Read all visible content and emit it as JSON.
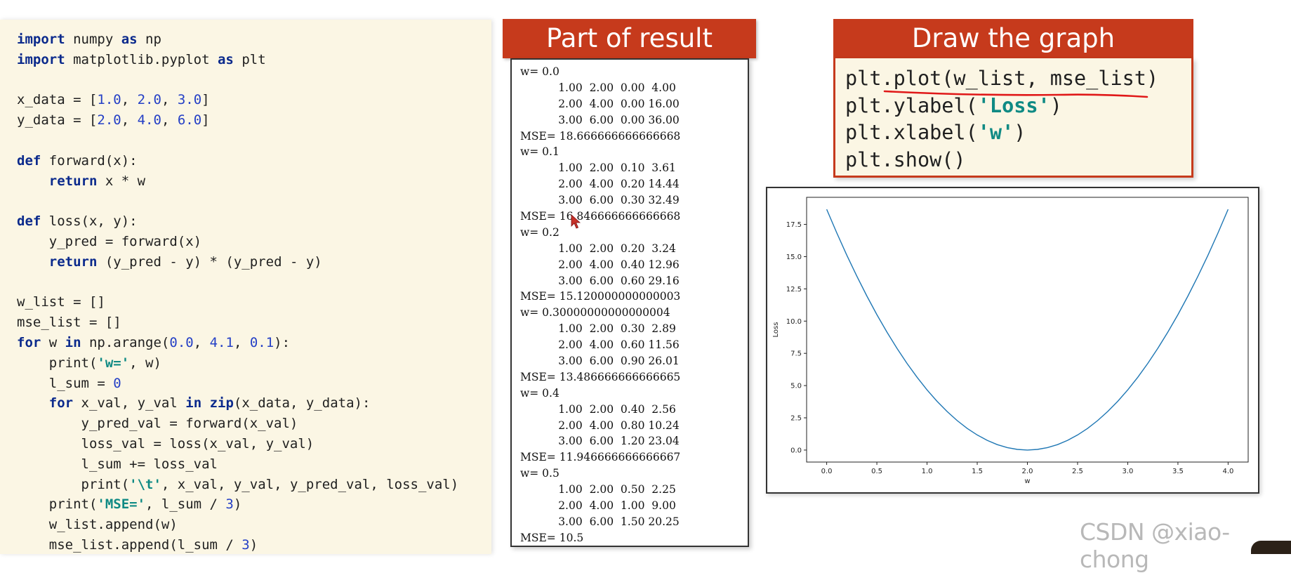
{
  "code": {
    "lines": [
      {
        "kind": "plain",
        "parts": [
          {
            "t": "import",
            "k": "kw"
          },
          {
            "t": " numpy ",
            "k": ""
          },
          {
            "t": "as",
            "k": "kw"
          },
          {
            "t": " np",
            "k": ""
          }
        ]
      },
      {
        "kind": "plain",
        "parts": [
          {
            "t": "import",
            "k": "kw"
          },
          {
            "t": " matplotlib.pyplot ",
            "k": ""
          },
          {
            "t": "as",
            "k": "kw"
          },
          {
            "t": " plt",
            "k": ""
          }
        ]
      },
      {
        "kind": "blank",
        "parts": []
      },
      {
        "kind": "plain",
        "parts": [
          {
            "t": "x_data = [",
            "k": ""
          },
          {
            "t": "1.0",
            "k": "num"
          },
          {
            "t": ", ",
            "k": ""
          },
          {
            "t": "2.0",
            "k": "num"
          },
          {
            "t": ", ",
            "k": ""
          },
          {
            "t": "3.0",
            "k": "num"
          },
          {
            "t": "]",
            "k": ""
          }
        ]
      },
      {
        "kind": "plain",
        "parts": [
          {
            "t": "y_data = [",
            "k": ""
          },
          {
            "t": "2.0",
            "k": "num"
          },
          {
            "t": ", ",
            "k": ""
          },
          {
            "t": "4.0",
            "k": "num"
          },
          {
            "t": ", ",
            "k": ""
          },
          {
            "t": "6.0",
            "k": "num"
          },
          {
            "t": "]",
            "k": ""
          }
        ]
      },
      {
        "kind": "blank",
        "parts": []
      },
      {
        "kind": "plain",
        "parts": [
          {
            "t": "def",
            "k": "kw"
          },
          {
            "t": " forward(x):",
            "k": ""
          }
        ]
      },
      {
        "kind": "plain",
        "parts": [
          {
            "t": "    ",
            "k": ""
          },
          {
            "t": "return",
            "k": "kw"
          },
          {
            "t": " x * w",
            "k": ""
          }
        ]
      },
      {
        "kind": "blank",
        "parts": []
      },
      {
        "kind": "plain",
        "parts": [
          {
            "t": "def",
            "k": "kw"
          },
          {
            "t": " loss(x, y):",
            "k": ""
          }
        ]
      },
      {
        "kind": "plain",
        "parts": [
          {
            "t": "    y_pred = forward(x)",
            "k": ""
          }
        ]
      },
      {
        "kind": "plain",
        "parts": [
          {
            "t": "    ",
            "k": ""
          },
          {
            "t": "return",
            "k": "kw"
          },
          {
            "t": " (y_pred - y) * (y_pred - y)",
            "k": ""
          }
        ]
      },
      {
        "kind": "blank",
        "parts": []
      },
      {
        "kind": "plain",
        "parts": [
          {
            "t": "w_list = []",
            "k": ""
          }
        ]
      },
      {
        "kind": "plain",
        "parts": [
          {
            "t": "mse_list = []",
            "k": ""
          }
        ]
      },
      {
        "kind": "plain",
        "parts": [
          {
            "t": "for",
            "k": "kw"
          },
          {
            "t": " w ",
            "k": ""
          },
          {
            "t": "in",
            "k": "kw"
          },
          {
            "t": " np.arange(",
            "k": ""
          },
          {
            "t": "0.0",
            "k": "num"
          },
          {
            "t": ", ",
            "k": ""
          },
          {
            "t": "4.1",
            "k": "num"
          },
          {
            "t": ", ",
            "k": ""
          },
          {
            "t": "0.1",
            "k": "num"
          },
          {
            "t": "):",
            "k": ""
          }
        ]
      },
      {
        "kind": "plain",
        "parts": [
          {
            "t": "    print(",
            "k": ""
          },
          {
            "t": "'w='",
            "k": "str"
          },
          {
            "t": ", w)",
            "k": ""
          }
        ]
      },
      {
        "kind": "plain",
        "parts": [
          {
            "t": "    l_sum = ",
            "k": ""
          },
          {
            "t": "0",
            "k": "num"
          }
        ]
      },
      {
        "kind": "plain",
        "parts": [
          {
            "t": "    ",
            "k": ""
          },
          {
            "t": "for",
            "k": "kw"
          },
          {
            "t": " x_val, y_val ",
            "k": ""
          },
          {
            "t": "in",
            "k": "kw"
          },
          {
            "t": " ",
            "k": ""
          },
          {
            "t": "zip",
            "k": "kw"
          },
          {
            "t": "(x_data, y_data):",
            "k": ""
          }
        ]
      },
      {
        "kind": "plain",
        "parts": [
          {
            "t": "        y_pred_val = forward(x_val)",
            "k": ""
          }
        ]
      },
      {
        "kind": "plain",
        "parts": [
          {
            "t": "        loss_val = loss(x_val, y_val)",
            "k": ""
          }
        ]
      },
      {
        "kind": "plain",
        "parts": [
          {
            "t": "        l_sum += loss_val",
            "k": ""
          }
        ]
      },
      {
        "kind": "plain",
        "parts": [
          {
            "t": "        print(",
            "k": ""
          },
          {
            "t": "'\\t'",
            "k": "str"
          },
          {
            "t": ", x_val, y_val, y_pred_val, loss_val)",
            "k": ""
          }
        ]
      },
      {
        "kind": "plain",
        "parts": [
          {
            "t": "    print(",
            "k": ""
          },
          {
            "t": "'MSE='",
            "k": "str"
          },
          {
            "t": ", l_sum / ",
            "k": ""
          },
          {
            "t": "3",
            "k": "num"
          },
          {
            "t": ")",
            "k": ""
          }
        ]
      },
      {
        "kind": "plain",
        "parts": [
          {
            "t": "    w_list.append(w)",
            "k": ""
          }
        ]
      },
      {
        "kind": "plain",
        "parts": [
          {
            "t": "    mse_list.append(l_sum / ",
            "k": ""
          },
          {
            "t": "3",
            "k": "num"
          },
          {
            "t": ")",
            "k": ""
          }
        ]
      }
    ]
  },
  "result": {
    "title": "Part of result",
    "lines": [
      "w= 0.0",
      "           1.00  2.00  0.00  4.00",
      "           2.00  4.00  0.00 16.00",
      "           3.00  6.00  0.00 36.00",
      "MSE= 18.666666666666668",
      "w= 0.1",
      "           1.00  2.00  0.10  3.61",
      "           2.00  4.00  0.20 14.44",
      "           3.00  6.00  0.30 32.49",
      "MSE= 16.846666666666668",
      "w= 0.2",
      "           1.00  2.00  0.20  3.24",
      "           2.00  4.00  0.40 12.96",
      "           3.00  6.00  0.60 29.16",
      "MSE= 15.120000000000003",
      "w= 0.30000000000000004",
      "           1.00  2.00  0.30  2.89",
      "           2.00  4.00  0.60 11.56",
      "           3.00  6.00  0.90 26.01",
      "MSE= 13.486666666666665",
      "w= 0.4",
      "           1.00  2.00  0.40  2.56",
      "           2.00  4.00  0.80 10.24",
      "           3.00  6.00  1.20 23.04",
      "MSE= 11.946666666666667",
      "w= 0.5",
      "           1.00  2.00  0.50  2.25",
      "           2.00  4.00  1.00  9.00",
      "           3.00  6.00  1.50 20.25",
      "MSE= 10.5"
    ]
  },
  "graph": {
    "title": "Draw the graph",
    "code_lines": [
      [
        {
          "t": "plt.plot(w_list, mse_list)",
          "k": ""
        }
      ],
      [
        {
          "t": "plt.ylabel(",
          "k": ""
        },
        {
          "t": "'Loss'",
          "k": "str"
        },
        {
          "t": ")",
          "k": ""
        }
      ],
      [
        {
          "t": "plt.xlabel(",
          "k": ""
        },
        {
          "t": "'w'",
          "k": "str"
        },
        {
          "t": ")",
          "k": ""
        }
      ],
      [
        {
          "t": "plt.show()",
          "k": ""
        }
      ]
    ]
  },
  "chart_data": {
    "type": "line",
    "x_func": "mse = mean over (x,y) of (x*w - y)^2 for x in [1,2,3], y=2x",
    "series": [
      {
        "x": [
          0.0,
          0.1,
          0.2,
          0.3,
          0.4,
          0.5,
          0.6,
          0.7,
          0.8,
          0.9,
          1.0,
          1.1,
          1.2,
          1.3,
          1.4,
          1.5,
          1.6,
          1.7,
          1.8,
          1.9,
          2.0,
          2.1,
          2.2,
          2.3,
          2.4,
          2.5,
          2.6,
          2.7,
          2.8,
          2.9,
          3.0,
          3.1,
          3.2,
          3.3,
          3.4,
          3.5,
          3.6,
          3.7,
          3.8,
          3.9,
          4.0
        ],
        "values": [
          18.67,
          16.85,
          15.12,
          13.49,
          11.95,
          10.5,
          9.15,
          7.89,
          6.72,
          5.65,
          4.67,
          3.78,
          2.99,
          2.29,
          1.68,
          1.17,
          0.75,
          0.42,
          0.19,
          0.05,
          0.0,
          0.05,
          0.19,
          0.42,
          0.75,
          1.17,
          1.68,
          2.29,
          2.99,
          3.78,
          4.67,
          5.65,
          6.72,
          7.89,
          9.15,
          10.5,
          11.95,
          13.49,
          15.12,
          16.85,
          18.67
        ]
      }
    ],
    "xlabel": "w",
    "ylabel": "Loss",
    "xticks": [
      "0.0",
      "0.5",
      "1.0",
      "1.5",
      "2.0",
      "2.5",
      "3.0",
      "3.5",
      "4.0"
    ],
    "yticks": [
      "0.0",
      "2.5",
      "5.0",
      "7.5",
      "10.0",
      "12.5",
      "15.0",
      "17.5"
    ],
    "xlim": [
      -0.2,
      4.2
    ],
    "ylim": [
      -0.93,
      19.6
    ],
    "color": "#1f77b4"
  },
  "watermark": "CSDN @xiao-chong",
  "colors": {
    "accent": "#c63a1c",
    "code_bg": "#fbf6e4",
    "keyword": "#0b2a8c",
    "number": "#2540c6",
    "string": "#0f8a84"
  }
}
